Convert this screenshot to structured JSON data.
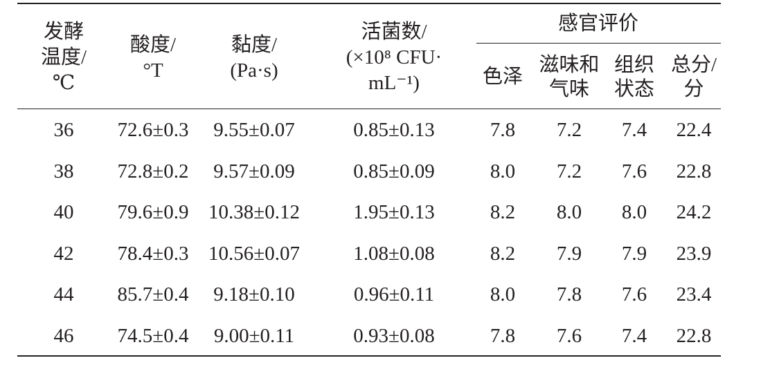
{
  "table": {
    "header": {
      "columns": [
        {
          "lines": [
            "发酵",
            "温度/",
            "℃"
          ]
        },
        {
          "lines": [
            "酸度/",
            "°T"
          ]
        },
        {
          "lines": [
            "黏度/",
            "(Pa·s)"
          ]
        },
        {
          "lines": [
            "活菌数/",
            "(×10⁸ CFU·",
            "mL⁻¹)"
          ]
        }
      ],
      "group": {
        "title": "感官评价",
        "columns": [
          {
            "lines": [
              "色泽"
            ]
          },
          {
            "lines": [
              "滋味和",
              "气味"
            ]
          },
          {
            "lines": [
              "组织",
              "状态"
            ]
          },
          {
            "lines": [
              "总分/",
              "分"
            ]
          }
        ]
      }
    },
    "rows": [
      [
        "36",
        "72.6±0.3",
        "9.55±0.07",
        "0.85±0.13",
        "7.8",
        "7.2",
        "7.4",
        "22.4"
      ],
      [
        "38",
        "72.8±0.2",
        "9.57±0.09",
        "0.85±0.09",
        "8.0",
        "7.2",
        "7.6",
        "22.8"
      ],
      [
        "40",
        "79.6±0.9",
        "10.38±0.12",
        "1.95±0.13",
        "8.2",
        "8.0",
        "8.0",
        "24.2"
      ],
      [
        "42",
        "78.4±0.3",
        "10.56±0.07",
        "1.08±0.08",
        "8.2",
        "7.9",
        "7.9",
        "23.9"
      ],
      [
        "44",
        "85.7±0.4",
        "9.18±0.10",
        "0.96±0.11",
        "8.0",
        "7.8",
        "7.6",
        "23.4"
      ],
      [
        "46",
        "74.5±0.4",
        "9.00±0.11",
        "0.93±0.08",
        "7.8",
        "7.6",
        "7.4",
        "22.8"
      ]
    ]
  }
}
